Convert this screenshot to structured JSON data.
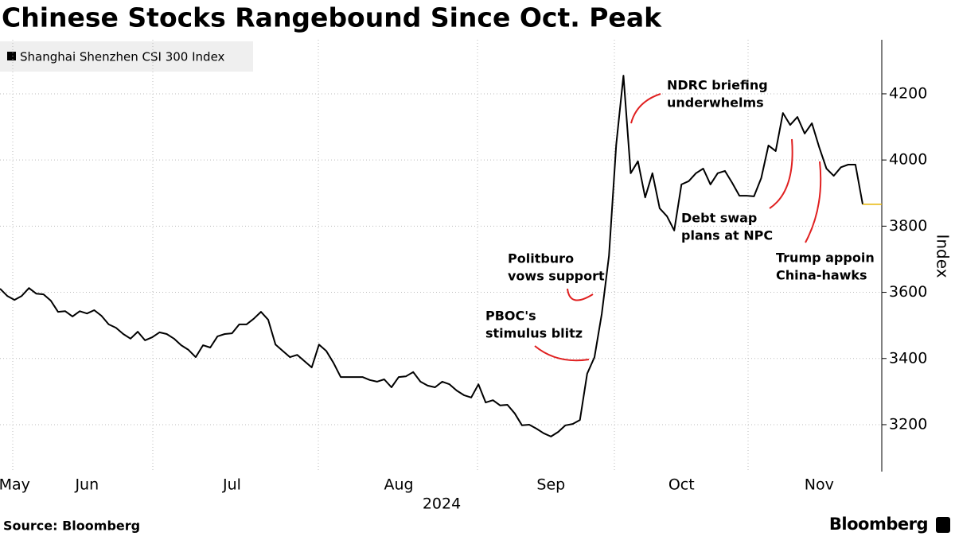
{
  "chart_data": {
    "type": "line",
    "title": "Chinese Stocks Rangebound Since Oct. Peak",
    "x_label": "2024",
    "y_label": "Index",
    "source": "Source: Bloomberg",
    "brand": "Bloomberg",
    "categories": [
      null,
      null,
      "May",
      null,
      null,
      null,
      null,
      null,
      null,
      null,
      null,
      null,
      "Jun",
      null,
      null,
      null,
      null,
      null,
      null,
      null,
      null,
      null,
      null,
      null,
      null,
      null,
      null,
      null,
      null,
      null,
      null,
      null,
      "Jul",
      null,
      null,
      null,
      null,
      null,
      null,
      null,
      null,
      null,
      null,
      null,
      null,
      null,
      null,
      null,
      null,
      null,
      null,
      null,
      null,
      null,
      null,
      "Aug",
      null,
      null,
      null,
      null,
      null,
      null,
      null,
      null,
      null,
      null,
      null,
      null,
      null,
      null,
      null,
      null,
      null,
      null,
      null,
      null,
      "Sep",
      null,
      null,
      null,
      null,
      null,
      null,
      null,
      null,
      null,
      null,
      null,
      null,
      null,
      null,
      null,
      null,
      null,
      "Oct",
      null,
      null,
      null,
      null,
      null,
      null,
      null,
      null,
      null,
      null,
      null,
      null,
      null,
      null,
      null,
      null,
      null,
      null,
      "Nov",
      null,
      null,
      null,
      null,
      null,
      null
    ],
    "series": [
      {
        "name": "Shanghai Shenzhen CSI 300 Index",
        "color": "#000000",
        "values": [
          3611,
          3589,
          3577,
          3589,
          3613,
          3596,
          3594,
          3575,
          3541,
          3543,
          3527,
          3543,
          3536,
          3546,
          3529,
          3503,
          3493,
          3474,
          3460,
          3481,
          3455,
          3464,
          3479,
          3474,
          3460,
          3440,
          3426,
          3404,
          3440,
          3433,
          3467,
          3474,
          3476,
          3503,
          3503,
          3520,
          3541,
          3517,
          3442,
          3423,
          3404,
          3411,
          3392,
          3373,
          3442,
          3423,
          3387,
          3344,
          3344,
          3344,
          3344,
          3335,
          3330,
          3337,
          3313,
          3344,
          3346,
          3359,
          3330,
          3318,
          3313,
          3330,
          3322,
          3303,
          3289,
          3282,
          3322,
          3267,
          3274,
          3258,
          3260,
          3234,
          3198,
          3200,
          3188,
          3174,
          3164,
          3178,
          3198,
          3202,
          3214,
          3354,
          3404,
          3534,
          3710,
          4046,
          4255,
          3960,
          3996,
          3887,
          3960,
          3854,
          3830,
          3787,
          3926,
          3936,
          3960,
          3974,
          3926,
          3960,
          3967,
          3931,
          3892,
          3892,
          3890,
          3945,
          4044,
          4027,
          4142,
          4106,
          4130,
          4080,
          4111,
          4039,
          3974,
          3952,
          3978,
          3986,
          3986,
          3866
        ]
      }
    ],
    "last_value_color": "#e8b400",
    "ylim": [
      3060,
      4360
    ],
    "yticks": [
      3200,
      3400,
      3600,
      3800,
      4000,
      4200
    ],
    "grid": true,
    "annotations": [
      [
        "NDRC briefing",
        "underwhelms"
      ],
      [
        "Debt swap",
        "plans at NPC"
      ],
      [
        "Trump appoin",
        "China-hawks"
      ],
      [
        "Politburo",
        "vows support"
      ],
      [
        "PBOC's",
        "stimulus blitz"
      ]
    ],
    "annotation_color": "#e02020"
  }
}
